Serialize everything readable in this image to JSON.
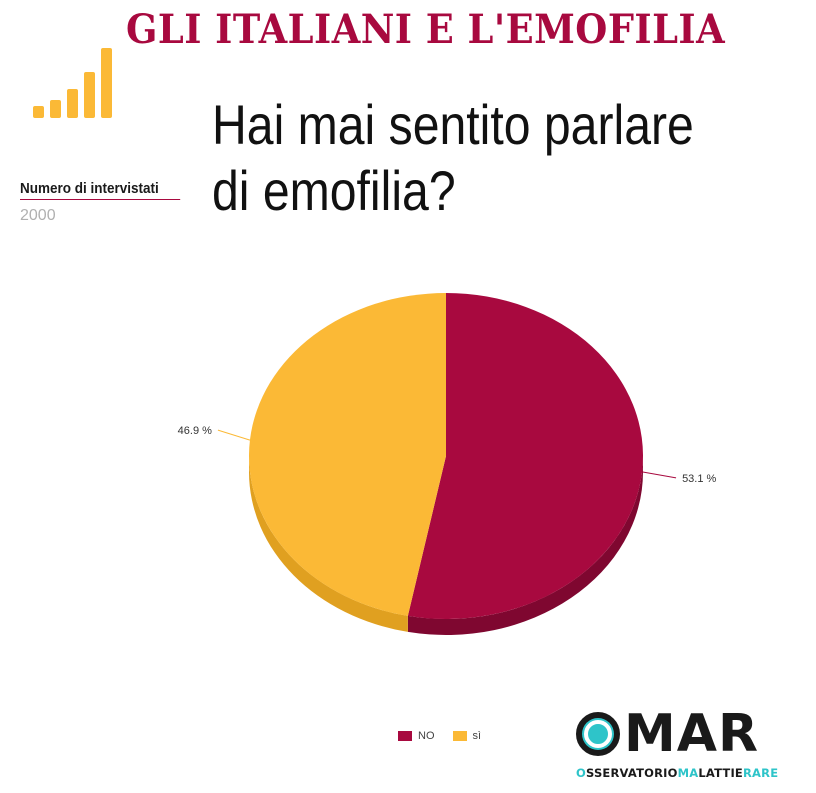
{
  "header": {
    "title": "GLI ITALIANI E L'EMOFILIA",
    "question": "Hai mai sentito parlare di emofilia?"
  },
  "meta": {
    "label": "Numero di intervistati",
    "value": "2000"
  },
  "colors": {
    "accent": "#a8093f",
    "yellow": "#fbb936"
  },
  "chart_data": {
    "type": "pie",
    "title": "",
    "categories": [
      "NO",
      "sì"
    ],
    "values": [
      53.1,
      46.9
    ],
    "labels": [
      "53.1 %",
      "46.9 %"
    ],
    "colors": [
      "#a8093f",
      "#fbb936"
    ],
    "legend": "bottom"
  },
  "logo": {
    "word": "MAR",
    "parts": [
      {
        "text": "O",
        "tone": "a"
      },
      {
        "text": "SSERVATORIO",
        "tone": "b"
      },
      {
        "text": "MA",
        "tone": "a"
      },
      {
        "text": "LATTIE",
        "tone": "b"
      },
      {
        "text": "RARE",
        "tone": "a"
      }
    ]
  }
}
